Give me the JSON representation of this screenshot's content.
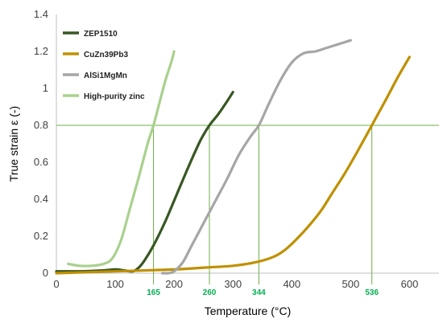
{
  "chart_data": {
    "type": "line",
    "xlabel": "Temperature (°C)",
    "ylabel": "True strain ε (-)",
    "xlim": [
      0,
      650
    ],
    "ylim": [
      0,
      1.4
    ],
    "xticks": [
      "0",
      "100",
      "200",
      "300",
      "400",
      "500",
      "600"
    ],
    "yticks": [
      "0",
      "0.2",
      "0.4",
      "0.6",
      "0.8",
      "1",
      "1.2",
      "1.4"
    ],
    "grid": false,
    "legend_position": "top-left",
    "series": [
      {
        "name": "ZEP1510",
        "color": "#385723",
        "x": [
          0,
          40,
          80,
          100,
          115,
          130,
          140,
          150,
          165,
          185,
          205,
          225,
          245,
          260,
          275,
          290,
          300
        ],
        "y": [
          0.01,
          0.01,
          0.015,
          0.02,
          0.015,
          0.01,
          0.03,
          0.07,
          0.15,
          0.28,
          0.43,
          0.58,
          0.72,
          0.8,
          0.86,
          0.93,
          0.98
        ]
      },
      {
        "name": "CuZn39Pb3",
        "color": "#BF9000",
        "x": [
          0,
          100,
          200,
          250,
          300,
          340,
          370,
          390,
          410,
          430,
          450,
          470,
          490,
          510,
          536,
          560,
          580,
          600
        ],
        "y": [
          0.0,
          0.01,
          0.02,
          0.03,
          0.04,
          0.06,
          0.09,
          0.13,
          0.19,
          0.26,
          0.34,
          0.44,
          0.54,
          0.65,
          0.8,
          0.94,
          1.06,
          1.17
        ]
      },
      {
        "name": "AlSi1MgMn",
        "color": "#A6A6A6",
        "x": [
          180,
          190,
          200,
          215,
          230,
          250,
          270,
          290,
          310,
          330,
          344,
          360,
          380,
          400,
          420,
          440,
          460,
          480,
          500
        ],
        "y": [
          0.0,
          0.0,
          0.01,
          0.06,
          0.15,
          0.27,
          0.39,
          0.51,
          0.64,
          0.74,
          0.8,
          0.91,
          1.04,
          1.14,
          1.19,
          1.2,
          1.22,
          1.24,
          1.26
        ]
      },
      {
        "name": "High-purity zinc",
        "color": "#A9D18E",
        "x": [
          20,
          40,
          60,
          80,
          95,
          110,
          125,
          140,
          155,
          165,
          175,
          185,
          195,
          200
        ],
        "y": [
          0.05,
          0.04,
          0.04,
          0.05,
          0.08,
          0.18,
          0.35,
          0.52,
          0.7,
          0.8,
          0.92,
          1.04,
          1.14,
          1.2
        ]
      }
    ],
    "reference_line": {
      "y": 0.8,
      "color": "#70AD47"
    },
    "annotations": [
      {
        "x": 165,
        "label": "165"
      },
      {
        "x": 260,
        "label": "260"
      },
      {
        "x": 344,
        "label": "344"
      },
      {
        "x": 536,
        "label": "536"
      }
    ],
    "annotation_color": "#00B050"
  }
}
